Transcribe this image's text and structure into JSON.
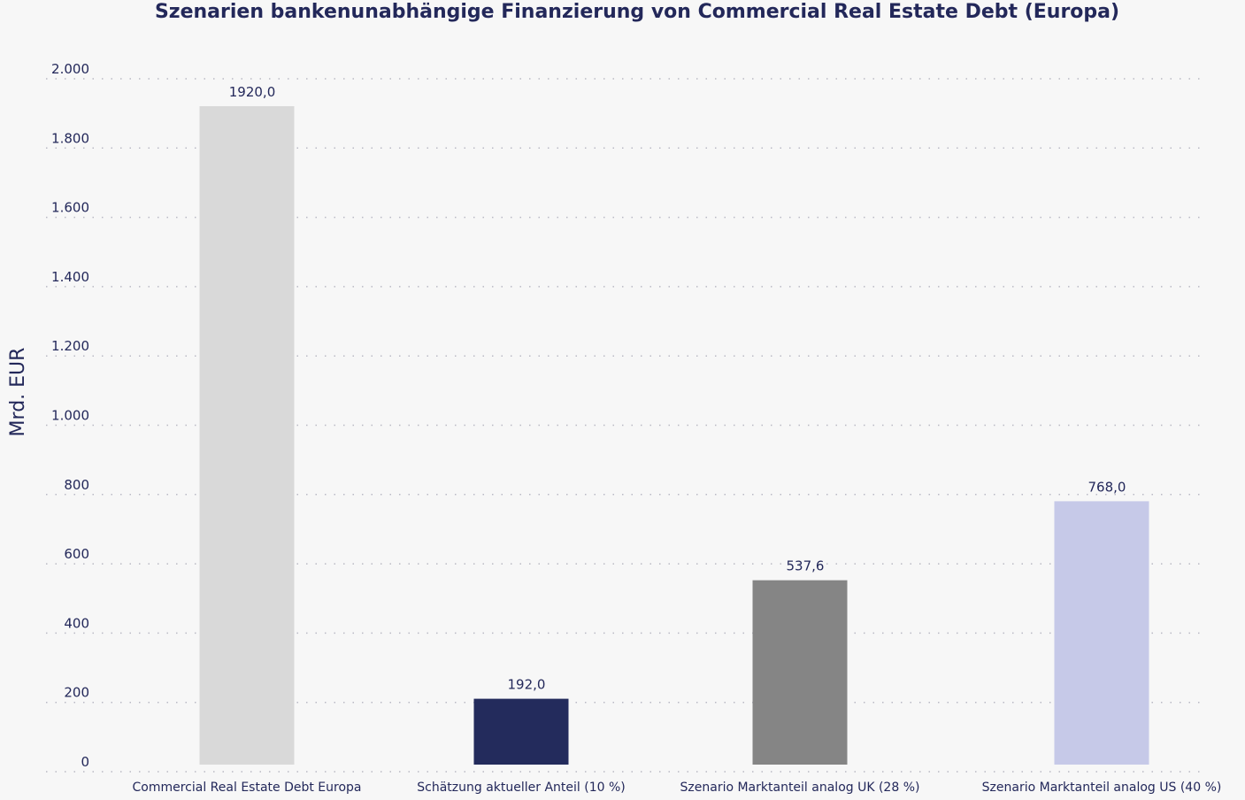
{
  "chart_data": {
    "type": "bar",
    "title": "Szenarien bankenunabhängige Finanzierung von Commercial Real Estate Debt (Europa)",
    "xlabel": "",
    "ylabel": "Mrd. EUR",
    "ylim": [
      0,
      2000
    ],
    "yticks": [
      0,
      200,
      400,
      600,
      800,
      1000,
      1200,
      1400,
      1600,
      1800,
      2000
    ],
    "ytick_labels": [
      "0",
      "200",
      "400",
      "600",
      "800",
      "1.000",
      "1.200",
      "1.400",
      "1.600",
      "1.800",
      "2.000"
    ],
    "grid": true,
    "categories": [
      "Commercial Real Estate Debt Europa",
      "Schätzung aktueller Anteil (10 %)",
      "Szenario Marktanteil analog UK (28 %)",
      "Szenario Marktanteil analog US (40 %)"
    ],
    "values": [
      1920.0,
      192.0,
      537.6,
      768.0
    ],
    "value_labels": [
      "1920,0",
      "192,0",
      "537,6",
      "768,0"
    ],
    "bar_colors": [
      "#d9d9d9",
      "#232b5c",
      "#858585",
      "#c6c9e8"
    ]
  }
}
